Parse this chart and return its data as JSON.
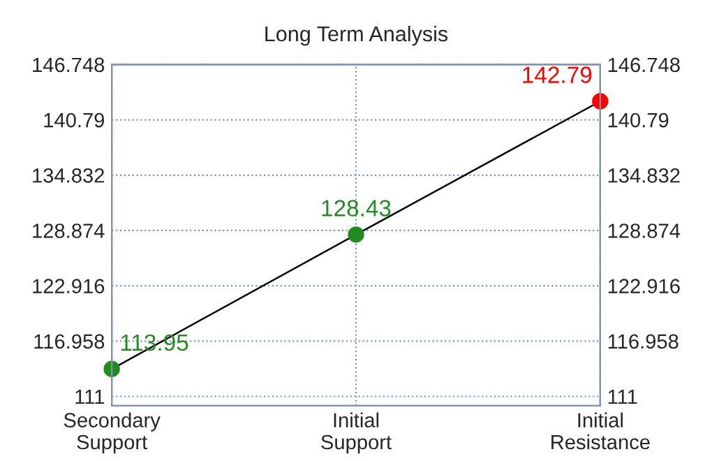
{
  "chart_data": {
    "type": "line",
    "title": "Long Term Analysis",
    "categories": [
      "Secondary\nSupport",
      "Initial\nSupport",
      "Initial\nResistance"
    ],
    "series": [
      {
        "values": [
          113.95,
          128.43,
          142.79
        ],
        "color": "#000000",
        "colors": [
          "#228b22",
          "#228b22",
          "#ff0000"
        ]
      }
    ],
    "ylim": [
      110,
      146.748
    ],
    "yticks": [
      111,
      116.958,
      122.916,
      128.874,
      134.832,
      140.79,
      146.748
    ],
    "y2lim": [
      110,
      146.748
    ],
    "y2ticks": [
      111,
      116.958,
      122.916,
      128.874,
      134.832,
      140.79,
      146.748
    ],
    "data_labels": true,
    "grid": true,
    "marker": "circle",
    "line_style": "solid",
    "legend": false
  }
}
